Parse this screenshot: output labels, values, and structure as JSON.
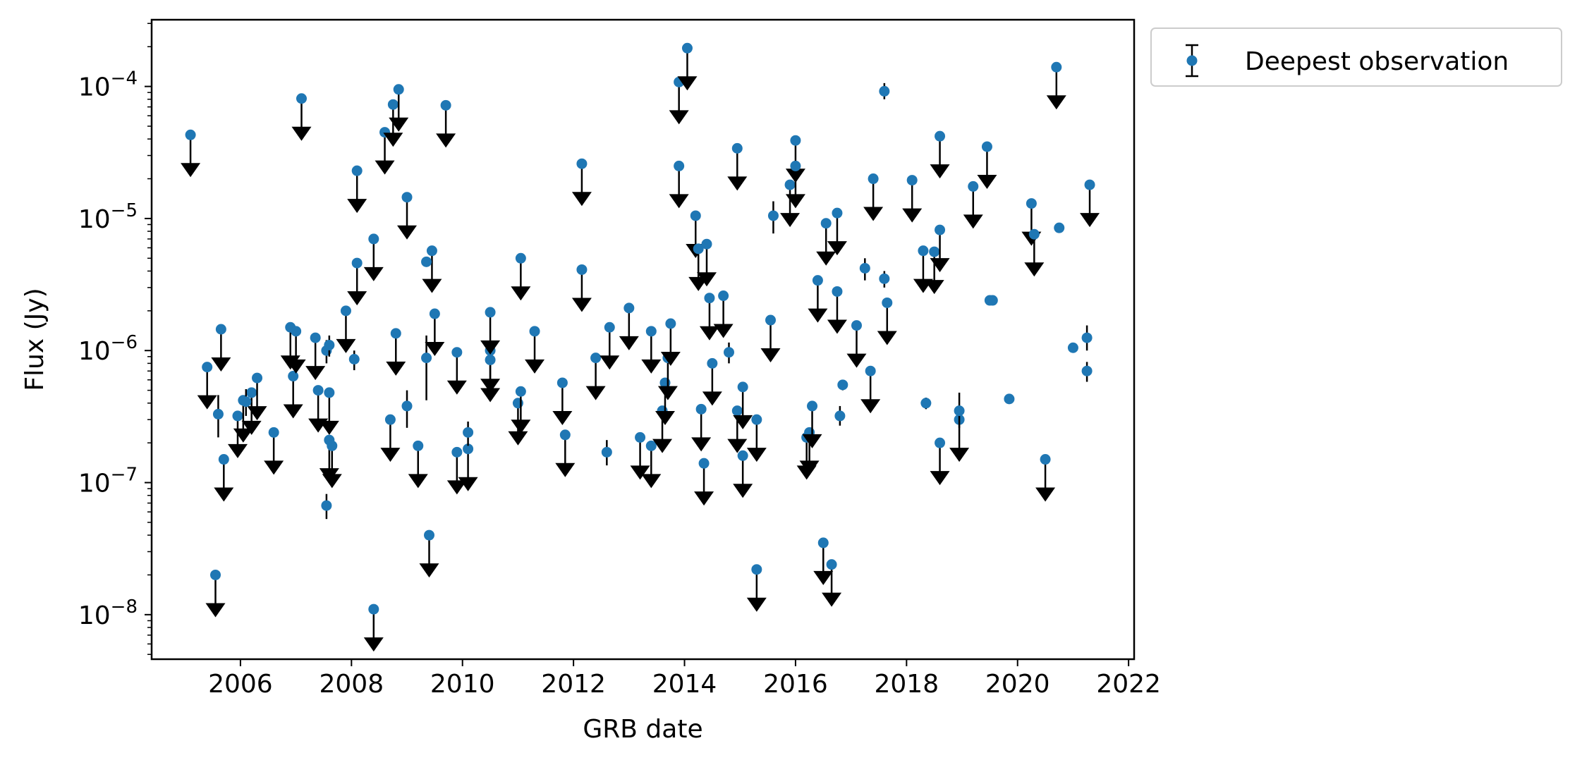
{
  "chart_data": {
    "type": "scatter",
    "title": "",
    "xlabel": "GRB date",
    "ylabel": "Flux (Jy)",
    "xlim": [
      2004.4,
      2022.1
    ],
    "ylim": [
      4.6e-09,
      0.00032
    ],
    "yscale": "log",
    "x_ticks": [
      2006,
      2008,
      2010,
      2012,
      2014,
      2016,
      2018,
      2020,
      2022
    ],
    "x_tick_labels": [
      "2006",
      "2008",
      "2010",
      "2012",
      "2014",
      "2016",
      "2018",
      "2020",
      "2022"
    ],
    "y_ticks": [
      1e-08,
      1e-07,
      1e-06,
      1e-05,
      0.0001
    ],
    "y_tick_labels": [
      {
        "base": "10",
        "exp": "−8"
      },
      {
        "base": "10",
        "exp": "−7"
      },
      {
        "base": "10",
        "exp": "−6"
      },
      {
        "base": "10",
        "exp": "−5"
      },
      {
        "base": "10",
        "exp": "−4"
      }
    ],
    "grid": false,
    "legend": {
      "placement": "outside-top-right",
      "entries": [
        "Deepest observation"
      ]
    },
    "colors": {
      "marker": "#1f77b4",
      "error": "#000000",
      "arrow": "#000000"
    },
    "series": [
      {
        "name": "Deepest observation",
        "upper_limits": [
          [
            2005.1,
            4.3e-05
          ],
          [
            2005.4,
            7.5e-07
          ],
          [
            2005.55,
            2e-08
          ],
          [
            2005.65,
            1.45e-06
          ],
          [
            2005.7,
            1.5e-07
          ],
          [
            2005.95,
            3.2e-07
          ],
          [
            2006.05,
            4.2e-07
          ],
          [
            2006.2,
            4.8e-07
          ],
          [
            2006.3,
            6.2e-07
          ],
          [
            2006.6,
            2.4e-07
          ],
          [
            2006.9,
            1.5e-06
          ],
          [
            2006.95,
            6.4e-07
          ],
          [
            2007.0,
            1.4e-06
          ],
          [
            2007.1,
            8.1e-05
          ],
          [
            2007.35,
            1.25e-06
          ],
          [
            2007.4,
            5e-07
          ],
          [
            2007.6,
            4.8e-07
          ],
          [
            2007.6,
            2.1e-07
          ],
          [
            2007.65,
            1.9e-07
          ],
          [
            2007.9,
            2e-06
          ],
          [
            2008.1,
            2.3e-05
          ],
          [
            2008.1,
            4.6e-06
          ],
          [
            2008.4,
            7e-06
          ],
          [
            2008.4,
            1.1e-08
          ],
          [
            2008.6,
            4.5e-05
          ],
          [
            2008.7,
            3e-07
          ],
          [
            2008.75,
            7.3e-05
          ],
          [
            2008.8,
            1.35e-06
          ],
          [
            2008.85,
            9.5e-05
          ],
          [
            2009.0,
            1.45e-05
          ],
          [
            2009.2,
            1.9e-07
          ],
          [
            2009.4,
            4e-08
          ],
          [
            2009.45,
            5.7e-06
          ],
          [
            2009.5,
            1.9e-06
          ],
          [
            2009.7,
            7.2e-05
          ],
          [
            2009.9,
            1.7e-07
          ],
          [
            2009.9,
            9.7e-07
          ],
          [
            2010.1,
            1.8e-07
          ],
          [
            2010.5,
            1e-06
          ],
          [
            2010.5,
            8.5e-07
          ],
          [
            2010.5,
            1.95e-06
          ],
          [
            2011.0,
            4e-07
          ],
          [
            2011.05,
            4.9e-07
          ],
          [
            2011.05,
            5e-06
          ],
          [
            2011.3,
            1.4e-06
          ],
          [
            2011.8,
            5.7e-07
          ],
          [
            2011.85,
            2.3e-07
          ],
          [
            2012.15,
            2.6e-05
          ],
          [
            2012.15,
            4.1e-06
          ],
          [
            2012.4,
            8.8e-07
          ],
          [
            2012.65,
            1.5e-06
          ],
          [
            2013.0,
            2.1e-06
          ],
          [
            2013.2,
            2.2e-07
          ],
          [
            2013.4,
            1.9e-07
          ],
          [
            2013.4,
            1.4e-06
          ],
          [
            2013.6,
            3.5e-07
          ],
          [
            2013.65,
            5.7e-07
          ],
          [
            2013.7,
            8.8e-07
          ],
          [
            2013.75,
            1.6e-06
          ],
          [
            2013.9,
            0.000108
          ],
          [
            2013.9,
            2.5e-05
          ],
          [
            2014.05,
            0.000195
          ],
          [
            2014.2,
            1.05e-05
          ],
          [
            2014.25,
            5.9e-06
          ],
          [
            2014.3,
            3.6e-07
          ],
          [
            2014.35,
            1.4e-07
          ],
          [
            2014.4,
            6.4e-06
          ],
          [
            2014.45,
            2.5e-06
          ],
          [
            2014.5,
            8e-07
          ],
          [
            2014.7,
            2.6e-06
          ],
          [
            2014.95,
            3.4e-05
          ],
          [
            2014.95,
            3.5e-07
          ],
          [
            2015.05,
            5.3e-07
          ],
          [
            2015.05,
            1.6e-07
          ],
          [
            2015.3,
            3e-07
          ],
          [
            2015.3,
            2.2e-08
          ],
          [
            2015.55,
            1.7e-06
          ],
          [
            2015.9,
            1.8e-05
          ],
          [
            2016.0,
            3.9e-05
          ],
          [
            2016.0,
            2.5e-05
          ],
          [
            2016.2,
            2.2e-07
          ],
          [
            2016.25,
            2.4e-07
          ],
          [
            2016.3,
            3.8e-07
          ],
          [
            2016.4,
            3.4e-06
          ],
          [
            2016.5,
            3.5e-08
          ],
          [
            2016.55,
            9.2e-06
          ],
          [
            2016.65,
            2.4e-08
          ],
          [
            2016.75,
            1.1e-05
          ],
          [
            2016.75,
            2.8e-06
          ],
          [
            2017.1,
            1.55e-06
          ],
          [
            2017.35,
            7e-07
          ],
          [
            2017.4,
            2e-05
          ],
          [
            2017.65,
            2.3e-06
          ],
          [
            2018.1,
            1.95e-05
          ],
          [
            2018.3,
            5.7e-06
          ],
          [
            2018.5,
            5.6e-06
          ],
          [
            2018.6,
            8.2e-06
          ],
          [
            2018.6,
            4.2e-05
          ],
          [
            2018.6,
            2e-07
          ],
          [
            2018.95,
            3e-07
          ],
          [
            2019.2,
            1.75e-05
          ],
          [
            2019.45,
            3.5e-05
          ],
          [
            2020.25,
            1.3e-05
          ],
          [
            2020.3,
            7.6e-06
          ],
          [
            2020.5,
            1.5e-07
          ],
          [
            2020.7,
            0.00014
          ],
          [
            2021.3,
            1.8e-05
          ]
        ],
        "detections": [
          [
            2005.6,
            3.3e-07,
            2.2e-07,
            4.6e-07
          ],
          [
            2006.1,
            4.1e-07,
            3.2e-07,
            5.1e-07
          ],
          [
            2007.55,
            1e-06,
            8e-07,
            1.2e-06
          ],
          [
            2007.6,
            1.1e-06,
            9e-07,
            1.3e-06
          ],
          [
            2007.55,
            6.7e-08,
            5.3e-08,
            8.2e-08
          ],
          [
            2008.05,
            8.6e-07,
            7.1e-07,
            1e-06
          ],
          [
            2009.0,
            3.8e-07,
            2.6e-07,
            5e-07
          ],
          [
            2009.35,
            8.8e-07,
            4.2e-07,
            1.3e-06
          ],
          [
            2009.35,
            4.7e-06,
            4.4e-06,
            5e-06
          ],
          [
            2010.1,
            2.4e-07,
            1.9e-07,
            2.9e-07
          ],
          [
            2012.6,
            1.7e-07,
            1.35e-07,
            2.1e-07
          ],
          [
            2014.8,
            9.7e-07,
            8e-07,
            1.15e-06
          ],
          [
            2015.6,
            1.05e-05,
            7.7e-06,
            1.35e-05
          ],
          [
            2016.8,
            3.2e-07,
            2.7e-07,
            3.8e-07
          ],
          [
            2016.85,
            5.5e-07,
            5e-07,
            6e-07
          ],
          [
            2017.25,
            4.2e-06,
            3.4e-06,
            5e-06
          ],
          [
            2017.6,
            3.5e-06,
            3e-06,
            4e-06
          ],
          [
            2017.6,
            9.2e-05,
            8e-05,
            0.000106
          ],
          [
            2018.35,
            4e-07,
            3.6e-07,
            4.4e-07
          ],
          [
            2018.95,
            3.5e-07,
            2.6e-07,
            4.8e-07
          ],
          [
            2019.5,
            2.4e-06,
            2.25e-06,
            2.55e-06
          ],
          [
            2019.55,
            2.4e-06,
            2.25e-06,
            2.55e-06
          ],
          [
            2019.85,
            4.3e-07,
            4.1e-07,
            4.5e-07
          ],
          [
            2020.75,
            8.5e-06,
            7.8e-06,
            9.2e-06
          ],
          [
            2021.0,
            1.05e-06,
            1e-06,
            1.1e-06
          ],
          [
            2021.25,
            1.25e-06,
            1e-06,
            1.55e-06
          ],
          [
            2021.25,
            7e-07,
            5.8e-07,
            8.2e-07
          ]
        ]
      }
    ]
  }
}
